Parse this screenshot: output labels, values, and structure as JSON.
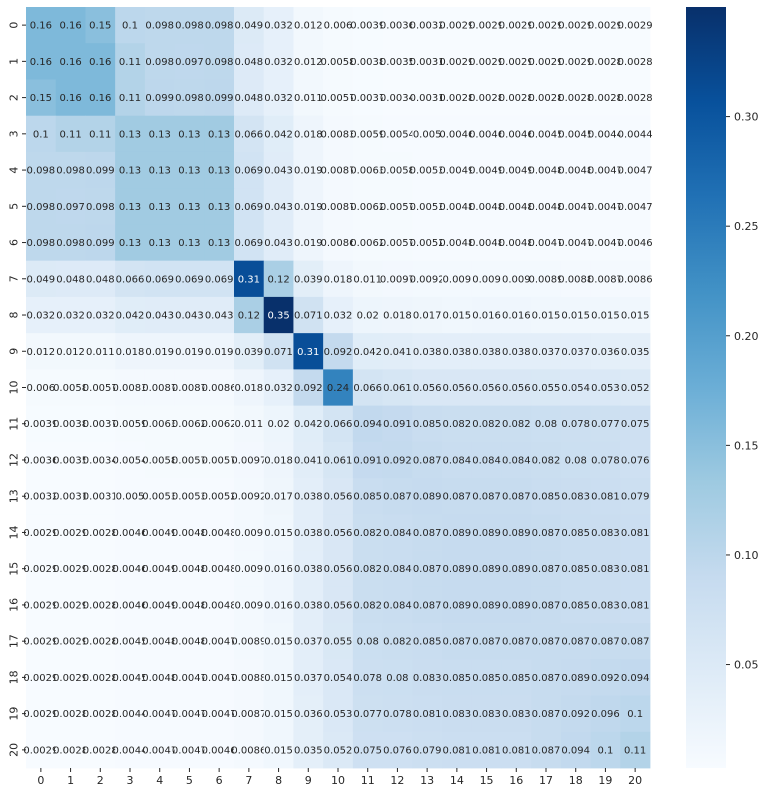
{
  "chart_data": {
    "type": "heatmap",
    "title": "",
    "xlabel": "",
    "ylabel": "",
    "x_categories": [
      "0",
      "1",
      "2",
      "3",
      "4",
      "5",
      "6",
      "7",
      "8",
      "9",
      "10",
      "11",
      "12",
      "13",
      "14",
      "15",
      "16",
      "17",
      "18",
      "19",
      "20"
    ],
    "y_categories": [
      "0",
      "1",
      "2",
      "3",
      "4",
      "5",
      "6",
      "7",
      "8",
      "9",
      "10",
      "11",
      "12",
      "13",
      "14",
      "15",
      "16",
      "17",
      "18",
      "19",
      "20"
    ],
    "colormap": "Blues",
    "colormap_low": "#f7fbff",
    "colormap_high": "#08306b",
    "vmin": 0.0028,
    "vmax": 0.35,
    "colorbar_ticks": [
      0.05,
      0.1,
      0.15,
      0.2,
      0.25,
      0.3
    ],
    "colorbar_tick_labels": [
      "0.05",
      "0.10",
      "0.15",
      "0.20",
      "0.25",
      "0.30"
    ],
    "values": [
      [
        0.16,
        0.16,
        0.15,
        0.1,
        0.098,
        0.098,
        0.098,
        0.049,
        0.032,
        0.012,
        0.006,
        0.0039,
        0.0036,
        0.0032,
        0.0029,
        0.0029,
        0.0029,
        0.0029,
        0.0029,
        0.0029,
        0.0029
      ],
      [
        0.16,
        0.16,
        0.16,
        0.11,
        0.098,
        0.097,
        0.098,
        0.048,
        0.032,
        0.012,
        0.0058,
        0.0038,
        0.0035,
        0.0031,
        0.0029,
        0.0029,
        0.0029,
        0.0029,
        0.0029,
        0.0028,
        0.0028
      ],
      [
        0.15,
        0.16,
        0.16,
        0.11,
        0.099,
        0.098,
        0.099,
        0.048,
        0.032,
        0.011,
        0.0057,
        0.0037,
        0.0034,
        0.0031,
        0.0028,
        0.0028,
        0.0028,
        0.0028,
        0.0028,
        0.0028,
        0.0028
      ],
      [
        0.1,
        0.11,
        0.11,
        0.13,
        0.13,
        0.13,
        0.13,
        0.066,
        0.042,
        0.018,
        0.0083,
        0.0059,
        0.0054,
        0.005,
        0.0046,
        0.0046,
        0.0046,
        0.0045,
        0.0045,
        0.0044,
        0.0044
      ],
      [
        0.098,
        0.098,
        0.099,
        0.13,
        0.13,
        0.13,
        0.13,
        0.069,
        0.043,
        0.019,
        0.0087,
        0.0063,
        0.0058,
        0.0053,
        0.0049,
        0.0049,
        0.0049,
        0.0048,
        0.0048,
        0.0047,
        0.0047
      ],
      [
        0.098,
        0.097,
        0.098,
        0.13,
        0.13,
        0.13,
        0.13,
        0.069,
        0.043,
        0.019,
        0.0087,
        0.0062,
        0.0057,
        0.0053,
        0.0048,
        0.0048,
        0.0048,
        0.0048,
        0.0047,
        0.0047,
        0.0047
      ],
      [
        0.098,
        0.098,
        0.099,
        0.13,
        0.13,
        0.13,
        0.13,
        0.069,
        0.043,
        0.019,
        0.0086,
        0.0062,
        0.0057,
        0.0052,
        0.0048,
        0.0048,
        0.0048,
        0.0047,
        0.0047,
        0.0047,
        0.0046
      ],
      [
        0.049,
        0.048,
        0.048,
        0.066,
        0.069,
        0.069,
        0.069,
        0.31,
        0.12,
        0.039,
        0.018,
        0.011,
        0.0097,
        0.0092,
        0.009,
        0.009,
        0.009,
        0.0089,
        0.0088,
        0.0087,
        0.0086
      ],
      [
        0.032,
        0.032,
        0.032,
        0.042,
        0.043,
        0.043,
        0.043,
        0.12,
        0.35,
        0.071,
        0.032,
        0.02,
        0.018,
        0.017,
        0.015,
        0.016,
        0.016,
        0.015,
        0.015,
        0.015,
        0.015
      ],
      [
        0.012,
        0.012,
        0.011,
        0.018,
        0.019,
        0.019,
        0.019,
        0.039,
        0.071,
        0.31,
        0.092,
        0.042,
        0.041,
        0.038,
        0.038,
        0.038,
        0.038,
        0.037,
        0.037,
        0.036,
        0.035
      ],
      [
        0.006,
        0.0058,
        0.0057,
        0.0083,
        0.0087,
        0.0087,
        0.0086,
        0.018,
        0.032,
        0.092,
        0.24,
        0.066,
        0.061,
        0.056,
        0.056,
        0.056,
        0.056,
        0.055,
        0.054,
        0.053,
        0.052
      ],
      [
        0.0039,
        0.0038,
        0.0037,
        0.0059,
        0.0063,
        0.0062,
        0.0062,
        0.011,
        0.02,
        0.042,
        0.066,
        0.094,
        0.091,
        0.085,
        0.082,
        0.082,
        0.082,
        0.08,
        0.078,
        0.077,
        0.075
      ],
      [
        0.0036,
        0.0035,
        0.0034,
        0.0054,
        0.0058,
        0.0057,
        0.0057,
        0.0097,
        0.018,
        0.041,
        0.061,
        0.091,
        0.092,
        0.087,
        0.084,
        0.084,
        0.084,
        0.082,
        0.08,
        0.078,
        0.076
      ],
      [
        0.0032,
        0.0031,
        0.0031,
        0.005,
        0.0053,
        0.0053,
        0.0052,
        0.0092,
        0.017,
        0.038,
        0.056,
        0.085,
        0.087,
        0.089,
        0.087,
        0.087,
        0.087,
        0.085,
        0.083,
        0.081,
        0.079
      ],
      [
        0.0029,
        0.0029,
        0.0028,
        0.0046,
        0.0049,
        0.0048,
        0.0048,
        0.009,
        0.015,
        0.038,
        0.056,
        0.082,
        0.084,
        0.087,
        0.089,
        0.089,
        0.089,
        0.087,
        0.085,
        0.083,
        0.081
      ],
      [
        0.0029,
        0.0029,
        0.0028,
        0.0046,
        0.0049,
        0.0048,
        0.0048,
        0.009,
        0.016,
        0.038,
        0.056,
        0.082,
        0.084,
        0.087,
        0.089,
        0.089,
        0.089,
        0.087,
        0.085,
        0.083,
        0.081
      ],
      [
        0.0029,
        0.0029,
        0.0028,
        0.0046,
        0.0049,
        0.0048,
        0.0048,
        0.009,
        0.016,
        0.038,
        0.056,
        0.082,
        0.084,
        0.087,
        0.089,
        0.089,
        0.089,
        0.087,
        0.085,
        0.083,
        0.081
      ],
      [
        0.0029,
        0.0029,
        0.0028,
        0.0045,
        0.0048,
        0.0048,
        0.0047,
        0.0089,
        0.015,
        0.037,
        0.055,
        0.08,
        0.082,
        0.085,
        0.087,
        0.087,
        0.087,
        0.087,
        0.087,
        0.087,
        0.087
      ],
      [
        0.0029,
        0.0029,
        0.0028,
        0.0045,
        0.0048,
        0.0047,
        0.0047,
        0.0088,
        0.015,
        0.037,
        0.054,
        0.078,
        0.08,
        0.083,
        0.085,
        0.085,
        0.085,
        0.087,
        0.089,
        0.092,
        0.094
      ],
      [
        0.0029,
        0.0028,
        0.0028,
        0.0044,
        0.0047,
        0.0047,
        0.0047,
        0.0087,
        0.015,
        0.036,
        0.053,
        0.077,
        0.078,
        0.081,
        0.083,
        0.083,
        0.083,
        0.087,
        0.092,
        0.096,
        0.1
      ],
      [
        0.0029,
        0.0028,
        0.0028,
        0.0044,
        0.0047,
        0.0047,
        0.0046,
        0.0086,
        0.015,
        0.035,
        0.052,
        0.075,
        0.076,
        0.079,
        0.081,
        0.081,
        0.081,
        0.087,
        0.094,
        0.1,
        0.11
      ]
    ]
  }
}
